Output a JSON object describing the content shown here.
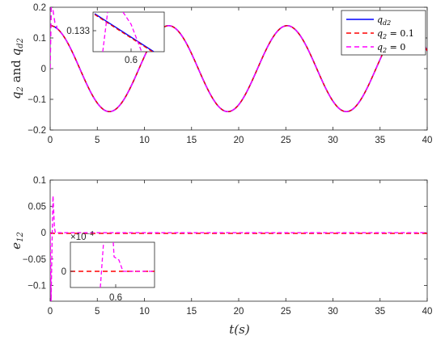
{
  "chart_data": [
    {
      "type": "line",
      "ylabel_main": "q",
      "ylabel_sub1": "2",
      "ylabel_mid": " and ",
      "ylabel_main2": "q",
      "ylabel_sub2": "d2",
      "xlim": [
        0,
        40
      ],
      "ylim": [
        -0.2,
        0.2
      ],
      "xticks": [
        "0",
        "5",
        "10",
        "15",
        "20",
        "25",
        "30",
        "35",
        "40"
      ],
      "yticks": [
        "-0.2",
        "-0.1",
        "0",
        "0.1",
        "0.2"
      ],
      "grid": false,
      "legend_placement": "top-right",
      "signal": {
        "amplitude": 0.14,
        "period": 12.57,
        "form": "cosine"
      },
      "series": [
        {
          "label_main": "q",
          "label_sub": "d2",
          "label_rest": "",
          "color": "#0000ff",
          "dash": "solid"
        },
        {
          "label_main": "q",
          "label_sub": "2",
          "label_rest": " = 0.1",
          "color": "#ff0000",
          "dash": "dashed"
        },
        {
          "label_main": "q",
          "label_sub": "2",
          "label_rest": " = 0",
          "color": "#ff00ff",
          "dash": "dashed"
        }
      ],
      "inset": {
        "ytick": "0.133",
        "xtick": "0.6"
      }
    },
    {
      "type": "line",
      "ylabel_main": "e",
      "ylabel_sub": "12",
      "xlabel": "t(s)",
      "xlim": [
        0,
        40
      ],
      "ylim": [
        -0.13,
        0.1
      ],
      "xticks": [
        "0",
        "5",
        "10",
        "15",
        "20",
        "25",
        "30",
        "35",
        "40"
      ],
      "yticks": [
        "-0.1",
        "-0.05",
        "0",
        "0.05",
        "0.1"
      ],
      "grid": false,
      "series": [
        {
          "name": "q2 = 0.1",
          "color": "#ff0000",
          "dash": "dashed",
          "value": 0
        },
        {
          "name": "q2 = 0",
          "color": "#ff00ff",
          "dash": "dashed",
          "transient_peak": 0.07,
          "transient_trough": -0.13
        }
      ],
      "inset": {
        "scale_base": "×10",
        "scale_exp": "−4",
        "ytick": "0",
        "xtick": "0.6"
      }
    }
  ]
}
